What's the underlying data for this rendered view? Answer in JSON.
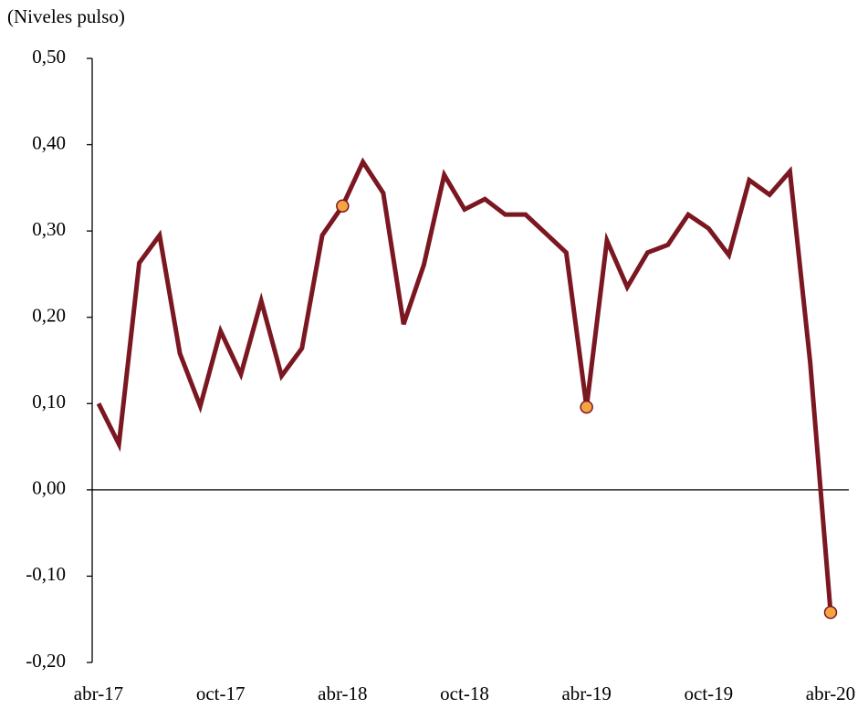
{
  "chart_data": {
    "type": "line",
    "y_label": "(Niveles pulso)",
    "categories": [
      "abr-17",
      null,
      null,
      null,
      null,
      null,
      "oct-17",
      null,
      null,
      null,
      null,
      null,
      "abr-18",
      null,
      null,
      null,
      null,
      null,
      "oct-18",
      null,
      null,
      null,
      null,
      null,
      "abr-19",
      null,
      null,
      null,
      null,
      null,
      "oct-19",
      null,
      null,
      null,
      null,
      null,
      "abr-20"
    ],
    "series": [
      {
        "color": "#7b1721",
        "values": [
          0.1,
          0.053,
          0.263,
          0.295,
          0.158,
          0.097,
          0.184,
          0.134,
          0.219,
          0.132,
          0.164,
          0.295,
          0.329,
          0.38,
          0.344,
          0.192,
          0.261,
          0.365,
          0.325,
          0.337,
          0.319,
          0.319,
          0.297,
          0.275,
          0.096,
          0.289,
          0.235,
          0.275,
          0.284,
          0.319,
          0.303,
          0.272,
          0.359,
          0.342,
          0.369,
          0.147,
          -0.142
        ]
      }
    ],
    "highlight_points": [
      12,
      24,
      36
    ],
    "highlight_color": "#f5a442",
    "ylim": [
      -0.2,
      0.5
    ],
    "yticks": [
      {
        "value": -0.2,
        "label": "-0,20"
      },
      {
        "value": -0.1,
        "label": "-0,10"
      },
      {
        "value": 0,
        "label": "0,00"
      },
      {
        "value": 0.1,
        "label": "0,10"
      },
      {
        "value": 0.2,
        "label": "0,20"
      },
      {
        "value": 0.3,
        "label": "0,30"
      },
      {
        "value": 0.4,
        "label": "0,40"
      },
      {
        "value": 0.5,
        "label": "0,50"
      }
    ],
    "zero_line": true
  }
}
